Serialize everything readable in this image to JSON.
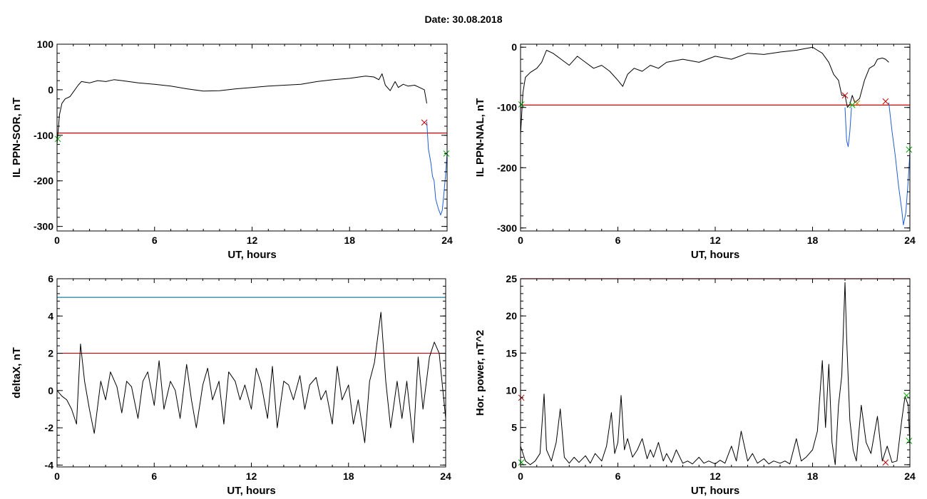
{
  "page": {
    "title": "Date:  30.08.2018"
  },
  "chart_data": [
    {
      "id": "p1",
      "type": "line",
      "xlabel": "UT, hours",
      "ylabel": "IL PPN-SOR, nT",
      "xlim": [
        0,
        24
      ],
      "ylim": [
        -310,
        100
      ],
      "xticks": [
        0,
        6,
        12,
        18,
        24
      ],
      "yticks": [
        -300,
        -200,
        -100,
        0,
        100
      ],
      "series": [
        {
          "color": "#000000",
          "x": [
            0,
            0.15,
            0.3,
            0.5,
            0.8,
            1.0,
            1.3,
            1.5,
            2.0,
            2.5,
            3.0,
            3.5,
            4.0,
            5.0,
            6.0,
            7.0,
            8.0,
            9.0,
            10.0,
            11.0,
            12.0,
            13.0,
            14.0,
            15.0,
            16.0,
            17.0,
            18.0,
            19.0,
            19.5,
            19.8,
            20.0,
            20.2,
            20.5,
            20.8,
            21.0,
            21.3,
            21.6,
            22.0,
            22.3,
            22.6,
            22.75
          ],
          "y": [
            -120,
            -55,
            -30,
            -20,
            -15,
            -5,
            10,
            18,
            15,
            20,
            18,
            22,
            20,
            15,
            12,
            8,
            2,
            -3,
            -2,
            2,
            5,
            8,
            10,
            12,
            18,
            22,
            25,
            30,
            28,
            22,
            35,
            10,
            -2,
            18,
            5,
            12,
            8,
            10,
            5,
            0,
            -30
          ]
        },
        {
          "color": "#1f5fd0",
          "x": [
            22.75,
            22.85,
            23.0,
            23.1,
            23.2,
            23.3,
            23.45,
            23.6,
            23.7,
            23.8,
            23.9,
            24.0
          ],
          "y": [
            -70,
            -130,
            -160,
            -190,
            -200,
            -240,
            -260,
            -275,
            -265,
            -230,
            -190,
            -140
          ]
        }
      ],
      "thresholds": [
        {
          "y": -95,
          "color": "#d00000"
        }
      ],
      "markers": [
        {
          "x": 22.6,
          "y": -72,
          "color": "#c00000",
          "symbol": "x"
        },
        {
          "x": 0.05,
          "y": -108,
          "color": "#00b000",
          "symbol": "x"
        },
        {
          "x": 23.95,
          "y": -140,
          "color": "#00b000",
          "symbol": "x"
        }
      ]
    },
    {
      "id": "p2",
      "type": "line",
      "xlabel": "UT, hours",
      "ylabel": "IL PPN-NAL, nT",
      "xlim": [
        0,
        24
      ],
      "ylim": [
        -305,
        5
      ],
      "xticks": [
        0,
        6,
        12,
        18,
        24
      ],
      "yticks": [
        -300,
        -200,
        -100,
        0
      ],
      "series": [
        {
          "color": "#000000",
          "x": [
            0,
            0.15,
            0.3,
            0.6,
            1.0,
            1.3,
            1.6,
            2.0,
            2.5,
            3.0,
            3.5,
            4.0,
            4.5,
            5.0,
            5.5,
            6.0,
            6.3,
            6.6,
            7.0,
            7.5,
            8.0,
            8.5,
            9.0,
            10.0,
            11.0,
            12.0,
            13.0,
            14.0,
            15.0,
            16.0,
            17.0,
            18.0,
            18.3,
            18.6,
            19.0,
            19.3,
            19.6,
            19.8,
            20.0,
            20.15,
            20.3,
            20.45,
            20.6,
            20.9,
            21.2,
            21.5,
            21.8,
            22.0,
            22.3,
            22.5,
            22.7
          ],
          "y": [
            -145,
            -75,
            -50,
            -42,
            -35,
            -25,
            -5,
            -10,
            -20,
            -30,
            -15,
            -25,
            -35,
            -30,
            -40,
            -55,
            -65,
            -45,
            -35,
            -40,
            -30,
            -35,
            -25,
            -20,
            -25,
            -15,
            -20,
            -10,
            -12,
            -8,
            -5,
            0,
            -5,
            -10,
            -25,
            -45,
            -55,
            -80,
            -80,
            -100,
            -95,
            -80,
            -92,
            -85,
            -55,
            -35,
            -30,
            -20,
            -18,
            -20,
            -25
          ]
        },
        {
          "color": "#1f5fd0",
          "x": [
            20.0,
            20.1,
            20.2,
            20.3,
            20.4
          ],
          "y": [
            -100,
            -155,
            -165,
            -140,
            -100
          ]
        },
        {
          "color": "#1f5fd0",
          "x": [
            22.7,
            22.9,
            23.1,
            23.3,
            23.5,
            23.6,
            23.75,
            23.9,
            24.0
          ],
          "y": [
            -92,
            -140,
            -180,
            -230,
            -270,
            -295,
            -275,
            -220,
            -175
          ]
        }
      ],
      "thresholds": [
        {
          "y": -96,
          "color": "#d00000"
        }
      ],
      "markers": [
        {
          "x": 20.0,
          "y": -80,
          "color": "#c00000",
          "symbol": "x"
        },
        {
          "x": 20.45,
          "y": -96,
          "color": "#00b000",
          "symbol": "x"
        },
        {
          "x": 20.75,
          "y": -93,
          "color": "#c08000",
          "symbol": "x"
        },
        {
          "x": 22.5,
          "y": -90,
          "color": "#c00000",
          "symbol": "x"
        },
        {
          "x": 0.05,
          "y": -95,
          "color": "#00b000",
          "symbol": "x"
        },
        {
          "x": 23.95,
          "y": -170,
          "color": "#00b000",
          "symbol": "x"
        }
      ]
    },
    {
      "id": "p3",
      "type": "line",
      "xlabel": "UT, hours",
      "ylabel": "deltaX, nT",
      "xlim": [
        0,
        24
      ],
      "ylim": [
        -4.1,
        6
      ],
      "xticks": [
        0,
        6,
        12,
        18,
        24
      ],
      "yticks": [
        -4,
        -2,
        0,
        2,
        4,
        6
      ],
      "series": [
        {
          "color": "#000000",
          "x": [
            0,
            0.3,
            0.6,
            0.9,
            1.2,
            1.45,
            1.7,
            2.0,
            2.3,
            2.7,
            3.0,
            3.3,
            3.7,
            4.0,
            4.3,
            4.6,
            5.0,
            5.3,
            5.6,
            6.0,
            6.3,
            6.6,
            7.0,
            7.3,
            7.6,
            8.0,
            8.3,
            8.6,
            9.0,
            9.3,
            9.6,
            10.0,
            10.3,
            10.6,
            11.0,
            11.3,
            11.6,
            12.0,
            12.3,
            12.6,
            13.0,
            13.3,
            13.6,
            14.0,
            14.3,
            14.6,
            15.0,
            15.3,
            15.6,
            16.0,
            16.3,
            16.6,
            17.0,
            17.3,
            17.6,
            18.0,
            18.3,
            18.6,
            19.0,
            19.3,
            19.6,
            20.0,
            20.3,
            20.6,
            21.0,
            21.3,
            21.6,
            22.0,
            22.3,
            22.6,
            23.0,
            23.3,
            23.6,
            24.0
          ],
          "y": [
            0,
            -0.3,
            -0.5,
            -1.0,
            -1.8,
            2.5,
            0.5,
            -1.0,
            -2.3,
            0.5,
            -0.5,
            1.0,
            0.2,
            -1.2,
            0.5,
            0.2,
            -1.5,
            0.5,
            1.0,
            -0.8,
            1.6,
            -1.0,
            0.5,
            0.0,
            -1.5,
            1.4,
            -0.5,
            -2.0,
            0.3,
            1.2,
            -0.5,
            0.5,
            -1.8,
            1.0,
            0.5,
            -0.5,
            0.3,
            -1.0,
            1.2,
            0.4,
            -1.5,
            1.3,
            -2.0,
            0.5,
            0.3,
            -0.5,
            0.8,
            -1.0,
            0.3,
            0.7,
            -0.5,
            0.0,
            -1.8,
            1.3,
            -0.5,
            0.3,
            -1.8,
            -0.5,
            -2.8,
            0.5,
            1.5,
            4.2,
            0.5,
            -2.0,
            0.5,
            -1.5,
            0.5,
            -2.8,
            1.8,
            -1.0,
            1.8,
            2.6,
            2.0,
            -1.5
          ]
        }
      ],
      "thresholds": [
        {
          "y": 2,
          "color": "#d00000"
        },
        {
          "y": 5,
          "color": "#1f7fa0"
        }
      ],
      "markers": []
    },
    {
      "id": "p4",
      "type": "line",
      "xlabel": "UT, hours",
      "ylabel": "Hor. power, nT^2",
      "xlim": [
        0,
        24
      ],
      "ylim": [
        -0.3,
        25
      ],
      "xticks": [
        0,
        6,
        12,
        18,
        24
      ],
      "yticks": [
        0,
        5,
        10,
        15,
        20,
        25
      ],
      "series": [
        {
          "color": "#000000",
          "x": [
            0,
            0.3,
            0.6,
            0.9,
            1.2,
            1.45,
            1.6,
            1.9,
            2.2,
            2.45,
            2.7,
            3.0,
            3.3,
            3.6,
            4.0,
            4.3,
            4.6,
            5.0,
            5.3,
            5.6,
            5.8,
            6.0,
            6.2,
            6.4,
            6.6,
            6.9,
            7.2,
            7.5,
            7.8,
            8.0,
            8.2,
            8.5,
            8.8,
            9.0,
            9.3,
            9.6,
            10.0,
            10.3,
            10.6,
            11.0,
            11.3,
            11.6,
            12.0,
            12.3,
            12.6,
            13.0,
            13.3,
            13.6,
            14.0,
            14.3,
            14.6,
            15.0,
            15.3,
            15.6,
            16.0,
            16.3,
            16.6,
            17.0,
            17.3,
            17.6,
            18.0,
            18.3,
            18.6,
            18.8,
            19.0,
            19.2,
            19.4,
            19.6,
            19.8,
            20.0,
            20.1,
            20.3,
            20.5,
            20.7,
            21.0,
            21.3,
            21.6,
            22.0,
            22.3,
            22.6,
            22.9,
            23.2,
            23.5,
            23.7,
            23.9,
            24.0
          ],
          "y": [
            2.5,
            0.5,
            0,
            0.5,
            1.5,
            9.5,
            2.0,
            0.5,
            3.0,
            7.5,
            1.0,
            0.2,
            1.0,
            0.3,
            1.2,
            0.2,
            1.5,
            0.5,
            2.5,
            7.0,
            1.5,
            3.0,
            9.3,
            2.0,
            3.5,
            1.0,
            2.0,
            3.5,
            0.8,
            2.0,
            1.0,
            3.0,
            0.5,
            1.5,
            0.3,
            2.0,
            0.2,
            0.5,
            0.1,
            1.0,
            0.2,
            0.5,
            0.1,
            0.6,
            0.2,
            2.5,
            0.5,
            4.5,
            0.5,
            1.5,
            0.2,
            0.8,
            0.1,
            0.5,
            0.2,
            0.5,
            0.1,
            3.5,
            0.5,
            1.0,
            2.0,
            4.5,
            14.0,
            5.0,
            13.5,
            3.0,
            0,
            8.0,
            12.0,
            24.5,
            17.0,
            6.0,
            2.0,
            0.5,
            8.0,
            3.0,
            1.5,
            6.5,
            0.5,
            2.5,
            0.3,
            0.5,
            6.0,
            9.2,
            8.0,
            2.5
          ]
        }
      ],
      "thresholds": [
        {
          "y": 25,
          "color": "#d00000"
        }
      ],
      "markers": [
        {
          "x": 23.8,
          "y": 9.3,
          "color": "#00b000",
          "symbol": "x"
        },
        {
          "x": 23.95,
          "y": 3.2,
          "color": "#00b000",
          "symbol": "x"
        },
        {
          "x": 0.05,
          "y": 0.3,
          "color": "#00b000",
          "symbol": "x"
        },
        {
          "x": 22.5,
          "y": 0.3,
          "color": "#c00000",
          "symbol": "x"
        },
        {
          "x": 0.05,
          "y": 9.0,
          "color": "#c00000",
          "symbol": "x"
        }
      ]
    }
  ]
}
